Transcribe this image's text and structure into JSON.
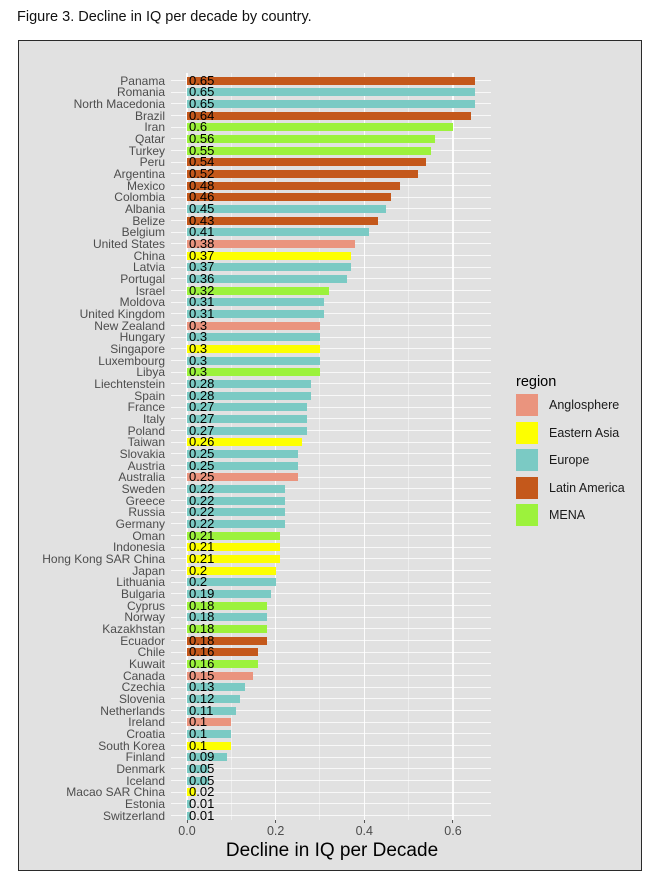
{
  "figure_title": "Figure 3. Decline in IQ per decade by country.",
  "chart_data": {
    "type": "bar",
    "orientation": "horizontal",
    "xlabel": "Decline in IQ per Decade",
    "ylabel": "",
    "xlim": [
      0,
      0.6825
    ],
    "xtick_values": [
      0,
      0.2,
      0.4,
      0.6
    ],
    "xtick_labels": [
      "0.0",
      "0.2",
      "0.4",
      "0.6"
    ],
    "xticks_minor": [
      0.1,
      0.3,
      0.5
    ],
    "grid": true,
    "legend": {
      "title": "region",
      "position": "right",
      "entries": [
        "Anglosphere",
        "Eastern Asia",
        "Europe",
        "Latin America",
        "MENA"
      ]
    },
    "region_colors": {
      "Anglosphere": "#EA947E",
      "Eastern Asia": "#FDFF00",
      "Europe": "#7BCAC4",
      "Latin America": "#C4581B",
      "MENA": "#9CF23C"
    },
    "countries": [
      {
        "name": "Panama",
        "value": 0.65,
        "label": "0.65",
        "region": "Latin America"
      },
      {
        "name": "Romania",
        "value": 0.65,
        "label": "0.65",
        "region": "Europe"
      },
      {
        "name": "North Macedonia",
        "value": 0.65,
        "label": "0.65",
        "region": "Europe"
      },
      {
        "name": "Brazil",
        "value": 0.64,
        "label": "0.64",
        "region": "Latin America"
      },
      {
        "name": "Iran",
        "value": 0.6,
        "label": "0.6",
        "region": "MENA"
      },
      {
        "name": "Qatar",
        "value": 0.56,
        "label": "0.56",
        "region": "MENA"
      },
      {
        "name": "Turkey",
        "value": 0.55,
        "label": "0.55",
        "region": "MENA"
      },
      {
        "name": "Peru",
        "value": 0.54,
        "label": "0.54",
        "region": "Latin America"
      },
      {
        "name": "Argentina",
        "value": 0.52,
        "label": "0.52",
        "region": "Latin America"
      },
      {
        "name": "Mexico",
        "value": 0.48,
        "label": "0.48",
        "region": "Latin America"
      },
      {
        "name": "Colombia",
        "value": 0.46,
        "label": "0.46",
        "region": "Latin America"
      },
      {
        "name": "Albania",
        "value": 0.45,
        "label": "0.45",
        "region": "Europe"
      },
      {
        "name": "Belize",
        "value": 0.43,
        "label": "0.43",
        "region": "Latin America"
      },
      {
        "name": "Belgium",
        "value": 0.41,
        "label": "0.41",
        "region": "Europe"
      },
      {
        "name": "United States",
        "value": 0.38,
        "label": "0.38",
        "region": "Anglosphere"
      },
      {
        "name": "China",
        "value": 0.37,
        "label": "0.37",
        "region": "Eastern Asia"
      },
      {
        "name": "Latvia",
        "value": 0.37,
        "label": "0.37",
        "region": "Europe"
      },
      {
        "name": "Portugal",
        "value": 0.36,
        "label": "0.36",
        "region": "Europe"
      },
      {
        "name": "Israel",
        "value": 0.32,
        "label": "0.32",
        "region": "MENA"
      },
      {
        "name": "Moldova",
        "value": 0.31,
        "label": "0.31",
        "region": "Europe"
      },
      {
        "name": "United Kingdom",
        "value": 0.31,
        "label": "0.31",
        "region": "Europe"
      },
      {
        "name": "New Zealand",
        "value": 0.3,
        "label": "0.3",
        "region": "Anglosphere"
      },
      {
        "name": "Hungary",
        "value": 0.3,
        "label": "0.3",
        "region": "Europe"
      },
      {
        "name": "Singapore",
        "value": 0.3,
        "label": "0.3",
        "region": "Eastern Asia"
      },
      {
        "name": "Luxembourg",
        "value": 0.3,
        "label": "0.3",
        "region": "Europe"
      },
      {
        "name": "Libya",
        "value": 0.3,
        "label": "0.3",
        "region": "MENA"
      },
      {
        "name": "Liechtenstein",
        "value": 0.28,
        "label": "0.28",
        "region": "Europe"
      },
      {
        "name": "Spain",
        "value": 0.28,
        "label": "0.28",
        "region": "Europe"
      },
      {
        "name": "France",
        "value": 0.27,
        "label": "0.27",
        "region": "Europe"
      },
      {
        "name": "Italy",
        "value": 0.27,
        "label": "0.27",
        "region": "Europe"
      },
      {
        "name": "Poland",
        "value": 0.27,
        "label": "0.27",
        "region": "Europe"
      },
      {
        "name": "Taiwan",
        "value": 0.26,
        "label": "0.26",
        "region": "Eastern Asia"
      },
      {
        "name": "Slovakia",
        "value": 0.25,
        "label": "0.25",
        "region": "Europe"
      },
      {
        "name": "Austria",
        "value": 0.25,
        "label": "0.25",
        "region": "Europe"
      },
      {
        "name": "Australia",
        "value": 0.25,
        "label": "0.25",
        "region": "Anglosphere"
      },
      {
        "name": "Sweden",
        "value": 0.22,
        "label": "0.22",
        "region": "Europe"
      },
      {
        "name": "Greece",
        "value": 0.22,
        "label": "0.22",
        "region": "Europe"
      },
      {
        "name": "Russia",
        "value": 0.22,
        "label": "0.22",
        "region": "Europe"
      },
      {
        "name": "Germany",
        "value": 0.22,
        "label": "0.22",
        "region": "Europe"
      },
      {
        "name": "Oman",
        "value": 0.21,
        "label": "0.21",
        "region": "MENA"
      },
      {
        "name": "Indonesia",
        "value": 0.21,
        "label": "0.21",
        "region": "Eastern Asia"
      },
      {
        "name": "Hong Kong SAR China",
        "value": 0.21,
        "label": "0.21",
        "region": "Eastern Asia"
      },
      {
        "name": "Japan",
        "value": 0.2,
        "label": "0.2",
        "region": "Eastern Asia"
      },
      {
        "name": "Lithuania",
        "value": 0.2,
        "label": "0.2",
        "region": "Europe"
      },
      {
        "name": "Bulgaria",
        "value": 0.19,
        "label": "0.19",
        "region": "Europe"
      },
      {
        "name": "Cyprus",
        "value": 0.18,
        "label": "0.18",
        "region": "MENA"
      },
      {
        "name": "Norway",
        "value": 0.18,
        "label": "0.18",
        "region": "Europe"
      },
      {
        "name": "Kazakhstan",
        "value": 0.18,
        "label": "0.18",
        "region": "MENA"
      },
      {
        "name": "Ecuador",
        "value": 0.18,
        "label": "0.18",
        "region": "Latin America"
      },
      {
        "name": "Chile",
        "value": 0.16,
        "label": "0.16",
        "region": "Latin America"
      },
      {
        "name": "Kuwait",
        "value": 0.16,
        "label": "0.16",
        "region": "MENA"
      },
      {
        "name": "Canada",
        "value": 0.15,
        "label": "0.15",
        "region": "Anglosphere"
      },
      {
        "name": "Czechia",
        "value": 0.13,
        "label": "0.13",
        "region": "Europe"
      },
      {
        "name": "Slovenia",
        "value": 0.12,
        "label": "0.12",
        "region": "Europe"
      },
      {
        "name": "Netherlands",
        "value": 0.11,
        "label": "0.11",
        "region": "Europe"
      },
      {
        "name": "Ireland",
        "value": 0.1,
        "label": "0.1",
        "region": "Anglosphere"
      },
      {
        "name": "Croatia",
        "value": 0.1,
        "label": "0.1",
        "region": "Europe"
      },
      {
        "name": "South Korea",
        "value": 0.1,
        "label": "0.1",
        "region": "Eastern Asia"
      },
      {
        "name": "Finland",
        "value": 0.09,
        "label": "0.09",
        "region": "Europe"
      },
      {
        "name": "Denmark",
        "value": 0.05,
        "label": "0.05",
        "region": "Europe"
      },
      {
        "name": "Iceland",
        "value": 0.05,
        "label": "0.05",
        "region": "Europe"
      },
      {
        "name": "Macao SAR China",
        "value": 0.02,
        "label": "0.02",
        "region": "Eastern Asia"
      },
      {
        "name": "Estonia",
        "value": 0.01,
        "label": "0.01",
        "region": "Europe"
      },
      {
        "name": "Switzerland",
        "value": 0.01,
        "label": "0.01",
        "region": "Europe"
      }
    ]
  }
}
